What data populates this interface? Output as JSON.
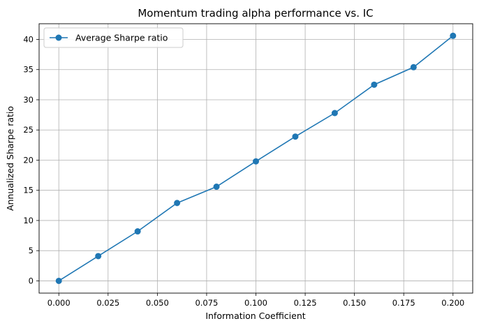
{
  "chart_data": {
    "type": "line",
    "title": "Momentum trading alpha performance vs. IC",
    "xlabel": "Information Coefficient",
    "ylabel": "Annualized Sharpe ratio",
    "xlim": [
      -0.01,
      0.21
    ],
    "ylim": [
      -2.03,
      42.6
    ],
    "xticks": [
      0.0,
      0.025,
      0.05,
      0.075,
      0.1,
      0.125,
      0.15,
      0.175,
      0.2
    ],
    "xtick_labels": [
      "0.000",
      "0.025",
      "0.050",
      "0.075",
      "0.100",
      "0.125",
      "0.150",
      "0.175",
      "0.200"
    ],
    "yticks": [
      0,
      5,
      10,
      15,
      20,
      25,
      30,
      35,
      40
    ],
    "ytick_labels": [
      "0",
      "5",
      "10",
      "15",
      "20",
      "25",
      "30",
      "35",
      "40"
    ],
    "grid": true,
    "legend_position": "top-left",
    "series": [
      {
        "name": "Average Sharpe ratio",
        "color": "#1f77b4",
        "marker": "circle",
        "x": [
          0.0,
          0.02,
          0.04,
          0.06,
          0.08,
          0.1,
          0.12,
          0.14,
          0.16,
          0.18,
          0.2
        ],
        "y": [
          0.0,
          4.1,
          8.2,
          12.9,
          15.6,
          19.8,
          23.9,
          27.8,
          32.5,
          35.4,
          40.6
        ]
      }
    ]
  }
}
